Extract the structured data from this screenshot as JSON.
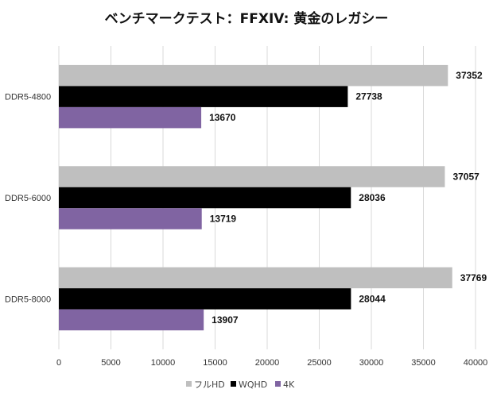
{
  "chart_data": {
    "type": "bar",
    "orientation": "horizontal",
    "title": "ベンチマークテスト：FFXIV: 黄金のレガシー",
    "xlabel": "",
    "ylabel": "",
    "categories": [
      "DDR5-4800",
      "DDR5-6000",
      "DDR5-8000"
    ],
    "series": [
      {
        "name": "フルHD",
        "color": "#bfbfbf",
        "values": [
          37352,
          37057,
          37769
        ]
      },
      {
        "name": "WQHD",
        "color": "#000000",
        "values": [
          27738,
          28036,
          28044
        ]
      },
      {
        "name": "4K",
        "color": "#8064a2",
        "values": [
          13670,
          13719,
          13907
        ]
      }
    ],
    "xlim": [
      0,
      40000
    ],
    "xticks": [
      "0",
      "5000",
      "10000",
      "15000",
      "20000",
      "25000",
      "30000",
      "35000",
      "40000"
    ],
    "grid": true,
    "legend_position": "bottom"
  }
}
